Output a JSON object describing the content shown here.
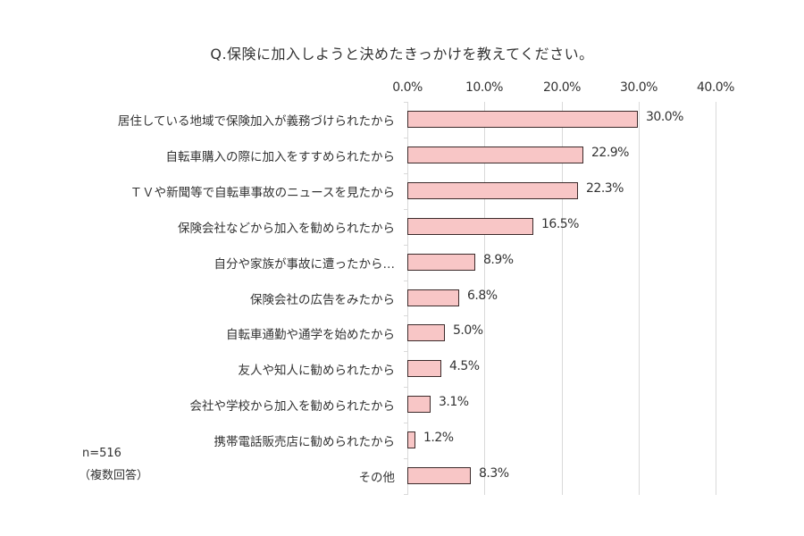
{
  "chart_data": {
    "type": "bar",
    "orientation": "horizontal",
    "title": "Q.保険に加入しようと決めたきっかけを教えてください。",
    "xlabel": "",
    "ylabel": "",
    "xlim": [
      0,
      40
    ],
    "grid": true,
    "tick_labels": [
      "0.0%",
      "10.0%",
      "20.0%",
      "30.0%",
      "40.0%"
    ],
    "tick_values": [
      0,
      10,
      20,
      30,
      40
    ],
    "categories": [
      "居住している地域で保険加入が義務づけられたから",
      "自転車購入の際に加入をすすめられたから",
      "ＴＶや新聞等で自転車事故のニュースを見たから",
      "保険会社などから加入を勧められたから",
      "自分や家族が事故に遭ったから…",
      "保険会社の広告をみたから",
      "自転車通勤や通学を始めたから",
      "友人や知人に勧められたから",
      "会社や学校から加入を勧められたから",
      "携帯電話販売店に勧められたから",
      "その他"
    ],
    "values": [
      30.0,
      22.9,
      22.3,
      16.5,
      8.9,
      6.8,
      5.0,
      4.5,
      3.1,
      1.2,
      8.3
    ],
    "value_labels": [
      "30.0%",
      "22.9%",
      "22.3%",
      "16.5%",
      "8.9%",
      "6.8%",
      "5.0%",
      "4.5%",
      "3.1%",
      "1.2%",
      "8.3%"
    ],
    "bar_color": "#f8c6c6",
    "bar_border_color": "#3b2a2a",
    "annotations": [
      "n=516",
      "（複数回答）"
    ]
  },
  "note": {
    "sample": "n=516",
    "multi": "（複数回答）"
  }
}
